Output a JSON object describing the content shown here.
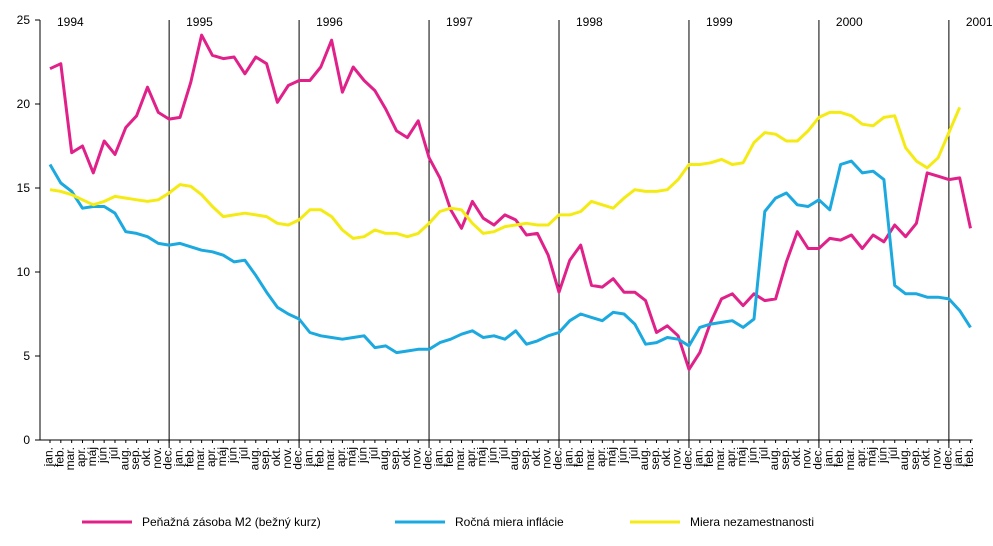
{
  "chart_data": {
    "type": "line",
    "categories": [
      "jan.",
      "feb.",
      "mar.",
      "apr.",
      "máj",
      "jún",
      "júl",
      "aug.",
      "sep.",
      "okt.",
      "nov.",
      "dec.",
      "jan.",
      "feb.",
      "mar.",
      "apr.",
      "máj",
      "jún",
      "júl",
      "aug.",
      "sep.",
      "okt.",
      "nov.",
      "dec.",
      "jan.",
      "feb.",
      "mar.",
      "apr.",
      "máj",
      "jún",
      "júl",
      "aug.",
      "sep.",
      "okt.",
      "nov.",
      "dec.",
      "jan.",
      "feb.",
      "mar.",
      "apr.",
      "máj",
      "jún",
      "júl",
      "aug.",
      "sep.",
      "okt.",
      "nov.",
      "dec.",
      "jan.",
      "feb.",
      "mar.",
      "apr.",
      "máj",
      "jún",
      "júl",
      "aug.",
      "sep.",
      "okt.",
      "nov.",
      "dec.",
      "jan.",
      "feb.",
      "mar.",
      "apr.",
      "máj",
      "jún",
      "júl",
      "aug.",
      "sep.",
      "okt.",
      "nov.",
      "dec.",
      "jan.",
      "feb.",
      "mar.",
      "apr.",
      "máj",
      "jún",
      "júl",
      "aug.",
      "sep.",
      "okt.",
      "nov.",
      "dec.",
      "jan.",
      "feb."
    ],
    "years": [
      "1994",
      "1995",
      "1996",
      "1997",
      "1998",
      "1999",
      "2000",
      "2001"
    ],
    "series": [
      {
        "name": "Peňažná zásoba M2 (bežný kurz)",
        "color": "#e0218a",
        "values": [
          22.1,
          22.4,
          17.1,
          17.5,
          15.9,
          17.8,
          17.0,
          18.6,
          19.3,
          21.0,
          19.5,
          19.1,
          19.2,
          21.3,
          24.1,
          22.9,
          22.7,
          22.8,
          21.8,
          22.8,
          22.4,
          20.1,
          21.1,
          21.4,
          21.4,
          22.2,
          23.8,
          20.7,
          22.2,
          21.4,
          20.8,
          19.7,
          18.4,
          18.0,
          19.0,
          16.8,
          15.6,
          13.7,
          12.6,
          14.2,
          13.2,
          12.8,
          13.4,
          13.1,
          12.2,
          12.3,
          11.0,
          8.8,
          10.7,
          11.6,
          9.2,
          9.1,
          9.6,
          8.8,
          8.8,
          8.3,
          6.4,
          6.8,
          6.2,
          4.2,
          5.2,
          7.0,
          8.4,
          8.7,
          8.0,
          8.7,
          8.3,
          8.4,
          10.6,
          12.4,
          11.4,
          11.4,
          12.0,
          11.9,
          12.2,
          11.4,
          12.2,
          11.8,
          12.8,
          12.1,
          12.9,
          15.9,
          15.7,
          15.5,
          15.6,
          12.6
        ]
      },
      {
        "name": "Ročná miera inflácie",
        "color": "#1ba9e0",
        "values": [
          16.4,
          15.3,
          14.8,
          13.8,
          13.9,
          13.9,
          13.5,
          12.4,
          12.3,
          12.1,
          11.7,
          11.6,
          11.7,
          11.5,
          11.3,
          11.2,
          11.0,
          10.6,
          10.7,
          9.8,
          8.8,
          7.9,
          7.5,
          7.2,
          6.4,
          6.2,
          6.1,
          6.0,
          6.1,
          6.2,
          5.5,
          5.6,
          5.2,
          5.3,
          5.4,
          5.4,
          5.8,
          6.0,
          6.3,
          6.5,
          6.1,
          6.2,
          6.0,
          6.5,
          5.7,
          5.9,
          6.2,
          6.4,
          7.1,
          7.5,
          7.3,
          7.1,
          7.6,
          7.5,
          6.9,
          5.7,
          5.8,
          6.1,
          6.0,
          5.6,
          6.7,
          6.9,
          7.0,
          7.1,
          6.7,
          7.2,
          13.6,
          14.4,
          14.7,
          14.0,
          13.9,
          14.3,
          13.7,
          16.4,
          16.6,
          15.9,
          16.0,
          15.5,
          9.2,
          8.7,
          8.7,
          8.5,
          8.5,
          8.4,
          7.7,
          6.7
        ]
      },
      {
        "name": "Miera nezamestnanosti",
        "color": "#f5eb14",
        "values": [
          14.9,
          14.8,
          14.6,
          14.3,
          14.0,
          14.2,
          14.5,
          14.4,
          14.3,
          14.2,
          14.3,
          14.7,
          15.2,
          15.1,
          14.6,
          13.9,
          13.3,
          13.4,
          13.5,
          13.4,
          13.3,
          12.9,
          12.8,
          13.1,
          13.7,
          13.7,
          13.3,
          12.5,
          12.0,
          12.1,
          12.5,
          12.3,
          12.3,
          12.1,
          12.3,
          12.9,
          13.6,
          13.8,
          13.7,
          12.9,
          12.3,
          12.4,
          12.7,
          12.8,
          12.9,
          12.8,
          12.8,
          13.4,
          13.4,
          13.6,
          14.2,
          14.0,
          13.8,
          14.4,
          14.9,
          14.8,
          14.8,
          14.9,
          15.5,
          16.4,
          16.4,
          16.5,
          16.7,
          16.4,
          16.5,
          17.7,
          18.3,
          18.2,
          17.8,
          17.8,
          18.4,
          19.2,
          19.5,
          19.5,
          19.3,
          18.8,
          18.7,
          19.2,
          19.3,
          17.4,
          16.6,
          16.2,
          16.8,
          18.3,
          19.8,
          null
        ]
      }
    ],
    "ylim": [
      0,
      25
    ],
    "yticks": [
      0,
      5,
      10,
      15,
      20,
      25
    ],
    "grid": false,
    "legend": "bottom"
  }
}
